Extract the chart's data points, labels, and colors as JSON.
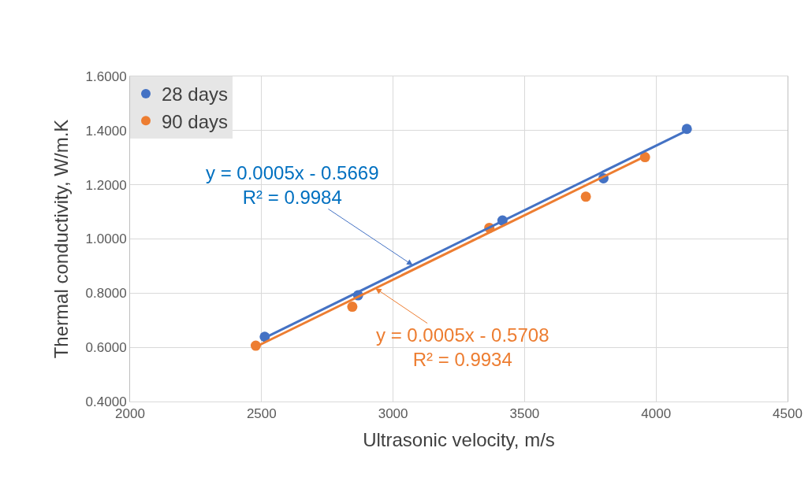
{
  "chart_data": {
    "type": "scatter",
    "xlabel": "Ultrasonic velocity, m/s",
    "ylabel": "Thermal conductivity, W/m.K",
    "xlim": [
      2000,
      4500
    ],
    "xticks": [
      2000,
      2500,
      3000,
      3500,
      4000,
      4500
    ],
    "ylim": [
      0.4,
      1.6
    ],
    "yticks": [
      {
        "value": 0.4,
        "label": "0.4000"
      },
      {
        "value": 0.6,
        "label": "0.6000"
      },
      {
        "value": 0.8,
        "label": "0.8000"
      },
      {
        "value": 1.0,
        "label": "1.0000"
      },
      {
        "value": 1.2,
        "label": "1.2000"
      },
      {
        "value": 1.4,
        "label": "1.4000"
      },
      {
        "value": 1.6,
        "label": "1.6000"
      }
    ],
    "grid": true,
    "legend": "top left",
    "marker": "circle",
    "series": [
      {
        "name": "28 days",
        "color": "#4472c4",
        "x": [
          2512,
          2867,
          3416,
          3800,
          4117
        ],
        "values": [
          0.639,
          0.792,
          1.068,
          1.224,
          1.406
        ]
      },
      {
        "name": "90 days",
        "color": "#ed7d31",
        "x": [
          2478,
          2845,
          3366,
          3733,
          3958
        ],
        "values": [
          0.606,
          0.75,
          1.041,
          1.156,
          1.302
        ]
      },
      {
        "type": "line",
        "color": "#4472c4",
        "marker": "none",
        "x": [
          2512,
          4117
        ],
        "values": [
          0.635,
          1.4
        ]
      },
      {
        "type": "line",
        "color": "#ed7d31",
        "marker": "none",
        "x": [
          2478,
          3958
        ],
        "values": [
          0.602,
          1.305
        ]
      }
    ],
    "annotations": [
      {
        "text": "y = 0.0005x - 0.5669\nR² = 0.9984",
        "x": 3075,
        "y": 0.903
      },
      {
        "text": "y = 0.0005x - 0.5708\nR² = 0.9934",
        "x": 2933,
        "y": 0.818
      }
    ]
  }
}
